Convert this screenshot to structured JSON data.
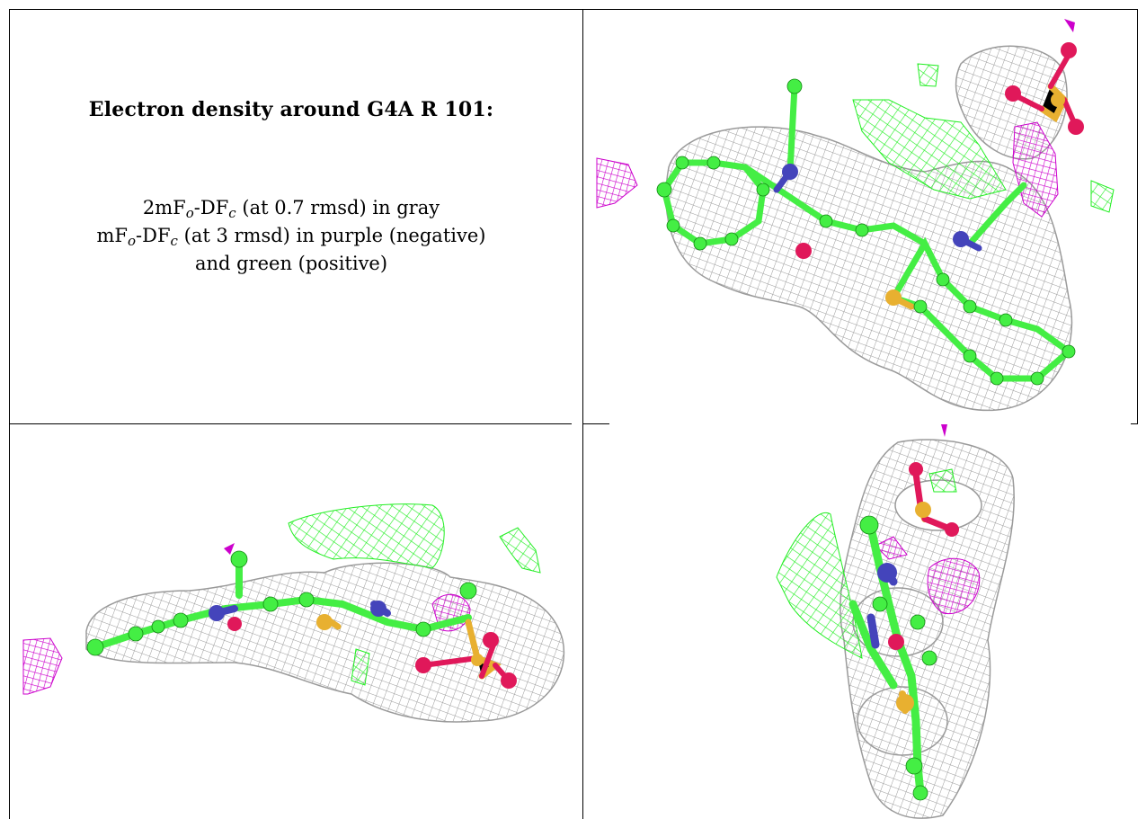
{
  "title": "Electron density around G4A R 101:",
  "legend": {
    "line1": {
      "pre": "2mF",
      "sub1": "o",
      "mid": "-DF",
      "sub2": "c",
      "post": " (at 0.7 rmsd) in gray"
    },
    "line2": {
      "pre": "mF",
      "sub1": "o",
      "mid": "-DF",
      "sub2": "c",
      "post": " (at 3 rmsd) in purple (negative)"
    },
    "line3": "and green (positive)"
  },
  "colors": {
    "density_2fofc": "#9a9a9a",
    "positive_fofc": "#22ee22",
    "negative_fofc": "#cc00cc",
    "carbon": "#44ee44",
    "nitrogen": "#4444bb",
    "oxygen": "#e0185a",
    "sulfur": "#e8b030"
  },
  "panels": [
    {
      "id": "view-1",
      "icon": "molecule-density-view-top"
    },
    {
      "id": "view-2",
      "icon": "molecule-density-view-side"
    },
    {
      "id": "view-3",
      "icon": "molecule-density-view-end"
    }
  ]
}
